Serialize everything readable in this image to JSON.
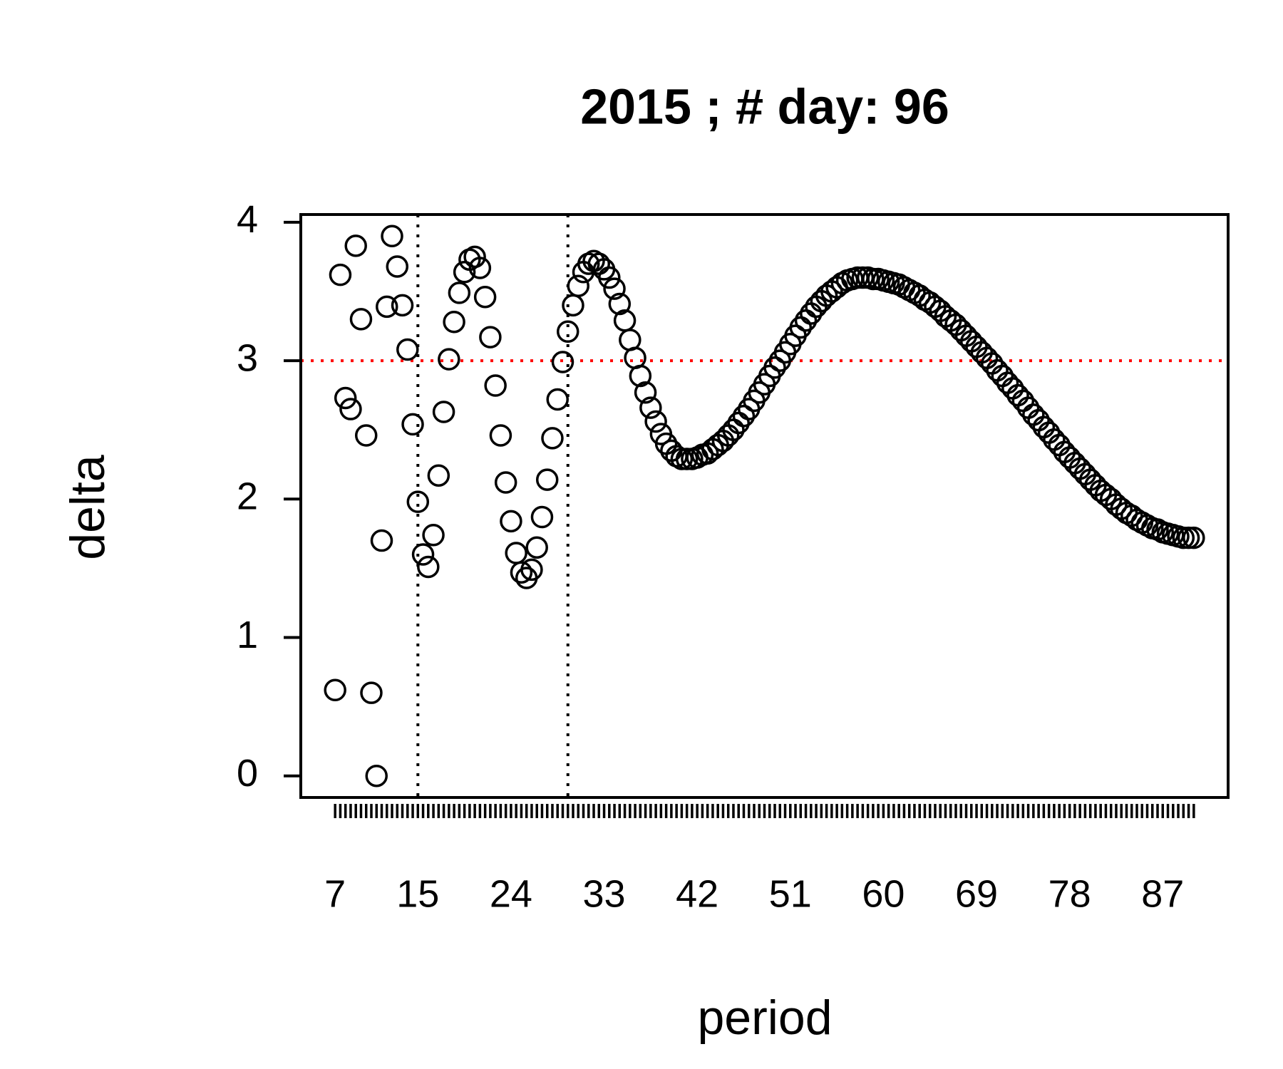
{
  "chart_data": {
    "type": "scatter",
    "title": "2015 ; # day:  96",
    "xlabel": "period",
    "ylabel": "delta",
    "x": [
      7,
      7.5,
      8,
      8.5,
      9,
      9.5,
      10,
      10.5,
      11,
      11.5,
      12,
      12.5,
      13,
      13.5,
      14,
      14.5,
      15,
      15.5,
      16,
      16.5,
      17,
      17.5,
      18,
      18.5,
      19,
      19.5,
      20,
      20.5,
      21,
      21.5,
      22,
      22.5,
      23,
      23.5,
      24,
      24.5,
      25,
      25.5,
      26,
      26.5,
      27,
      27.5,
      28,
      28.5,
      29,
      29.5,
      30,
      30.5,
      31,
      31.5,
      32,
      32.5,
      33,
      33.5,
      34,
      34.5,
      35,
      35.5,
      36,
      36.5,
      37,
      37.5,
      38,
      38.5,
      39,
      39.5,
      40,
      40.5,
      41,
      41.5,
      42,
      42.5,
      43,
      43.5,
      44,
      44.5,
      45,
      45.5,
      46,
      46.5,
      47,
      47.5,
      48,
      48.5,
      49,
      49.5,
      50,
      50.5,
      51,
      51.5,
      52,
      52.5,
      53,
      53.5,
      54,
      54.5,
      55,
      55.5,
      56,
      56.5,
      57,
      57.5,
      58,
      58.5,
      59,
      59.5,
      60,
      60.5,
      61,
      61.5,
      62,
      62.5,
      63,
      63.5,
      64,
      64.5,
      65,
      65.5,
      66,
      66.5,
      67,
      67.5,
      68,
      68.5,
      69,
      69.5,
      70,
      70.5,
      71,
      71.5,
      72,
      72.5,
      73,
      73.5,
      74,
      74.5,
      75,
      75.5,
      76,
      76.5,
      77,
      77.5,
      78,
      78.5,
      79,
      79.5,
      80,
      80.5,
      81,
      81.5,
      82,
      82.5,
      83,
      83.5,
      84,
      84.5,
      85,
      85.5,
      86,
      86.5,
      87,
      87.5,
      88,
      88.5,
      89,
      89.5,
      90
    ],
    "values": [
      0.62,
      3.62,
      2.73,
      2.65,
      3.83,
      3.3,
      2.46,
      0.6,
      0,
      1.7,
      3.39,
      3.9,
      3.68,
      3.4,
      3.08,
      2.54,
      1.98,
      1.6,
      1.51,
      1.74,
      2.17,
      2.63,
      3.01,
      3.28,
      3.49,
      3.64,
      3.73,
      3.75,
      3.67,
      3.46,
      3.17,
      2.82,
      2.46,
      2.12,
      1.84,
      1.61,
      1.47,
      1.43,
      1.49,
      1.65,
      1.87,
      2.14,
      2.44,
      2.72,
      2.99,
      3.21,
      3.4,
      3.54,
      3.64,
      3.7,
      3.72,
      3.7,
      3.66,
      3.6,
      3.52,
      3.41,
      3.29,
      3.15,
      3.02,
      2.89,
      2.77,
      2.66,
      2.56,
      2.47,
      2.4,
      2.35,
      2.31,
      2.29,
      2.29,
      2.29,
      2.3,
      2.32,
      2.33,
      2.36,
      2.39,
      2.42,
      2.46,
      2.5,
      2.55,
      2.6,
      2.65,
      2.71,
      2.77,
      2.83,
      2.89,
      2.95,
      3,
      3.06,
      3.12,
      3.18,
      3.24,
      3.29,
      3.34,
      3.39,
      3.43,
      3.47,
      3.5,
      3.53,
      3.56,
      3.58,
      3.59,
      3.6,
      3.6,
      3.6,
      3.59,
      3.59,
      3.58,
      3.57,
      3.56,
      3.55,
      3.53,
      3.51,
      3.49,
      3.47,
      3.44,
      3.42,
      3.39,
      3.36,
      3.32,
      3.29,
      3.26,
      3.22,
      3.18,
      3.14,
      3.1,
      3.06,
      3.02,
      2.98,
      2.93,
      2.89,
      2.84,
      2.8,
      2.75,
      2.71,
      2.66,
      2.61,
      2.57,
      2.52,
      2.48,
      2.43,
      2.39,
      2.34,
      2.3,
      2.26,
      2.22,
      2.18,
      2.14,
      2.1,
      2.06,
      2.03,
      2,
      1.96,
      1.93,
      1.9,
      1.88,
      1.85,
      1.83,
      1.81,
      1.79,
      1.78,
      1.76,
      1.75,
      1.74,
      1.73,
      1.72,
      1.72,
      1.72
    ],
    "color": "#000000",
    "xlim": [
      3.68,
      93.32
    ],
    "xticks": [
      7,
      15,
      24,
      33,
      42,
      51,
      60,
      69,
      78,
      87
    ],
    "ylim": [
      -0.156,
      4.056
    ],
    "yticks": [
      0,
      1,
      2,
      3,
      4
    ],
    "hline": 3,
    "hline_color": "#ff0000",
    "vlines": [
      15,
      29.5
    ],
    "vline_color": "#000000",
    "grid": false
  }
}
